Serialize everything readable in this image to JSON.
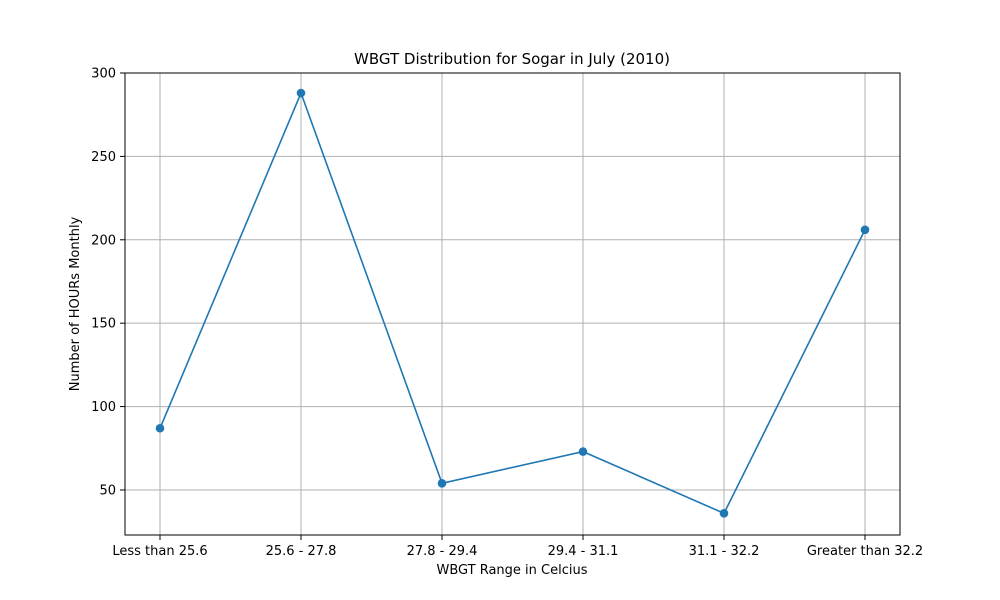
{
  "chart_data": {
    "type": "line",
    "title": "WBGT Distribution for Sogar in July (2010)",
    "xlabel": "WBGT Range in Celcius",
    "ylabel": "Number of HOURs Monthly",
    "categories": [
      "Less than 25.6",
      "25.6 - 27.8",
      "27.8 - 29.4",
      "29.4 - 31.1",
      "31.1 - 32.2",
      "Greater than 32.2"
    ],
    "series": [
      {
        "values": [
          87,
          288,
          54,
          73,
          36,
          206
        ],
        "color": "#1f77b4"
      }
    ],
    "ylim": [
      23,
      300
    ],
    "yticks": [
      50,
      100,
      150,
      200,
      250,
      300
    ],
    "grid": true,
    "marker": "circle"
  }
}
